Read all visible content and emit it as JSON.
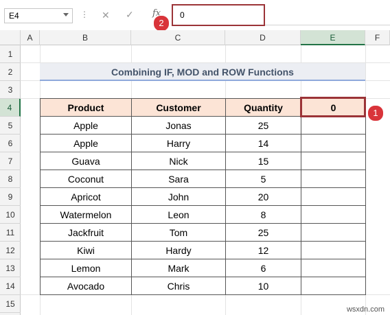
{
  "formula_bar": {
    "name_box": "E4",
    "dots": "⋮",
    "cancel_icon": "✕",
    "enter_icon": "✓",
    "fx": "fx",
    "content": "0"
  },
  "columns": [
    "A",
    "B",
    "C",
    "D",
    "E",
    "F"
  ],
  "rows": [
    "1",
    "2",
    "3",
    "4",
    "5",
    "6",
    "7",
    "8",
    "9",
    "10",
    "11",
    "12",
    "13",
    "14",
    "15"
  ],
  "title": "Combining IF, MOD and ROW Functions",
  "table": {
    "headers": [
      "Product",
      "Customer",
      "Quantity",
      "0"
    ],
    "rows": [
      [
        "Apple",
        "Jonas",
        "25",
        ""
      ],
      [
        "Apple",
        "Harry",
        "14",
        ""
      ],
      [
        "Guava",
        "Nick",
        "15",
        ""
      ],
      [
        "Coconut",
        "Sara",
        "5",
        ""
      ],
      [
        "Apricot",
        "John",
        "20",
        ""
      ],
      [
        "Watermelon",
        "Leon",
        "8",
        ""
      ],
      [
        "Jackfruit",
        "Tom",
        "25",
        ""
      ],
      [
        "Kiwi",
        "Hardy",
        "12",
        ""
      ],
      [
        "Lemon",
        "Mark",
        "6",
        ""
      ],
      [
        "Avocado",
        "Chris",
        "10",
        ""
      ]
    ]
  },
  "badges": [
    "1",
    "2"
  ],
  "watermark": "wsxdn.com",
  "colors": {
    "accent": "#9b3337",
    "badge": "#d9343a",
    "header_fill": "#fce4d6",
    "selected": "#217346"
  }
}
